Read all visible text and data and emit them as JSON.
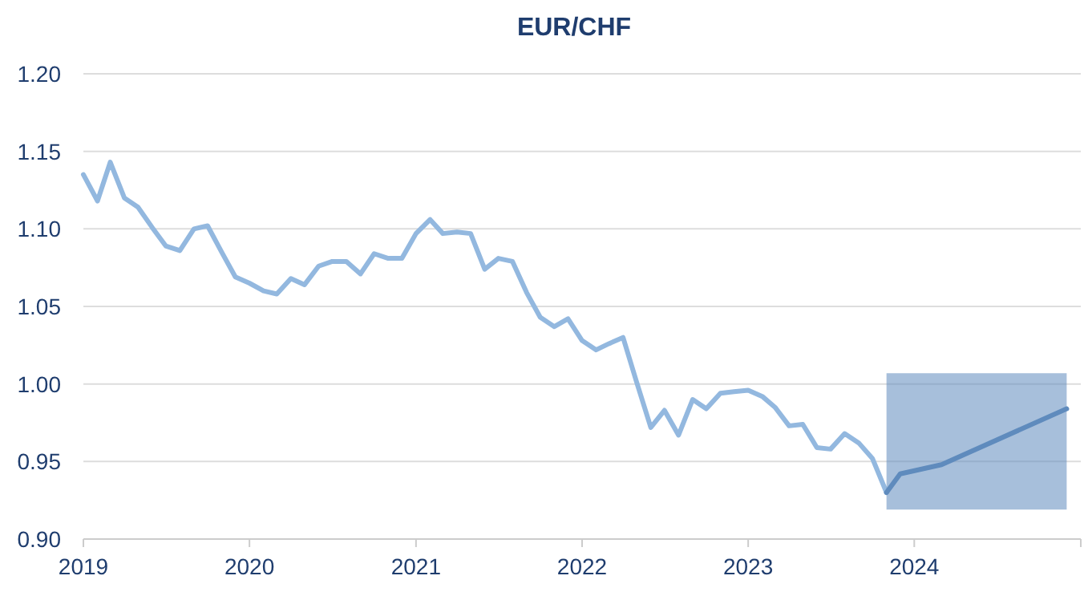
{
  "chart_data": {
    "type": "line",
    "title": "EUR/CHF",
    "x": [
      "2019-01",
      "2019-02",
      "2019-03",
      "2019-04",
      "2019-05",
      "2019-06",
      "2019-07",
      "2019-08",
      "2019-09",
      "2019-10",
      "2019-11",
      "2019-12",
      "2020-01",
      "2020-02",
      "2020-03",
      "2020-04",
      "2020-05",
      "2020-06",
      "2020-07",
      "2020-08",
      "2020-09",
      "2020-10",
      "2020-11",
      "2020-12",
      "2021-01",
      "2021-02",
      "2021-03",
      "2021-04",
      "2021-05",
      "2021-06",
      "2021-07",
      "2021-08",
      "2021-09",
      "2021-10",
      "2021-11",
      "2021-12",
      "2022-01",
      "2022-02",
      "2022-03",
      "2022-04",
      "2022-05",
      "2022-06",
      "2022-07",
      "2022-08",
      "2022-09",
      "2022-10",
      "2022-11",
      "2022-12",
      "2023-01",
      "2023-02",
      "2023-03",
      "2023-04",
      "2023-05",
      "2023-06",
      "2023-07",
      "2023-08",
      "2023-09",
      "2023-10",
      "2023-11"
    ],
    "series": [
      {
        "color": "#93b8df",
        "values": [
          1.135,
          1.118,
          1.143,
          1.12,
          1.114,
          1.101,
          1.089,
          1.086,
          1.1,
          1.102,
          1.085,
          1.069,
          1.065,
          1.06,
          1.058,
          1.068,
          1.064,
          1.076,
          1.079,
          1.079,
          1.071,
          1.084,
          1.081,
          1.081,
          1.097,
          1.106,
          1.097,
          1.098,
          1.097,
          1.074,
          1.081,
          1.079,
          1.059,
          1.043,
          1.037,
          1.042,
          1.028,
          1.022,
          1.026,
          1.03,
          1.001,
          0.972,
          0.983,
          0.967,
          0.99,
          0.984,
          0.994,
          0.995,
          0.996,
          0.992,
          0.985,
          0.973,
          0.974,
          0.959,
          0.958,
          0.968,
          0.962,
          0.952,
          0.93
        ]
      },
      {
        "color": "#5f8bbd",
        "x": [
          "2023-11",
          "2023-12",
          "2024-03",
          "2024-12"
        ],
        "values": [
          0.93,
          0.942,
          0.948,
          0.984
        ],
        "lower": [
          0.919,
          0.919,
          0.919,
          0.919
        ],
        "upper": [
          1.007,
          1.007,
          1.007,
          1.007
        ]
      }
    ],
    "xlim": [
      "2019-01",
      "2025-01"
    ],
    "xticks": [
      {
        "value": "2019",
        "label": "2019"
      },
      {
        "value": "2020",
        "label": "2020"
      },
      {
        "value": "2021",
        "label": "2021"
      },
      {
        "value": "2022",
        "label": "2022"
      },
      {
        "value": "2023",
        "label": "2023"
      },
      {
        "value": "2024",
        "label": "2024"
      },
      {
        "value": "2025",
        "label": null
      }
    ],
    "ylim": [
      0.9,
      1.2
    ],
    "yticks": [
      {
        "value": 0.9,
        "label": "0.90"
      },
      {
        "value": 0.95,
        "label": "0.95"
      },
      {
        "value": 1.0,
        "label": "1.00"
      },
      {
        "value": 1.05,
        "label": "1.05"
      },
      {
        "value": 1.1,
        "label": "1.10"
      },
      {
        "value": 1.15,
        "label": "1.15"
      },
      {
        "value": 1.2,
        "label": "1.20"
      }
    ],
    "grid": "y",
    "line_style": "solid",
    "marker": "none"
  }
}
